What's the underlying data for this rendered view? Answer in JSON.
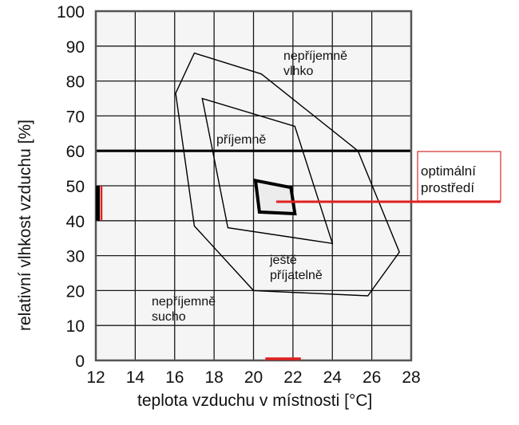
{
  "chart_data": {
    "type": "area",
    "title": "",
    "xlabel": "teplota vzduchu v místnosti [°C]",
    "ylabel": "relativní vlhkost vzduchu [%]",
    "xlim": [
      12,
      28
    ],
    "ylim": [
      0,
      100
    ],
    "x_ticks": [
      12,
      14,
      16,
      18,
      20,
      22,
      24,
      26,
      28
    ],
    "y_ticks": [
      0,
      10,
      20,
      30,
      40,
      50,
      60,
      70,
      80,
      90,
      100
    ],
    "grid": true,
    "reference_lines": [
      {
        "orientation": "horizontal",
        "value": 60,
        "style": "bold"
      }
    ],
    "series": [
      {
        "name": "ještě příjatelně",
        "kind": "polygon-outer",
        "points": [
          [
            17.0,
            88
          ],
          [
            20.4,
            82
          ],
          [
            25.3,
            60
          ],
          [
            27.4,
            31
          ],
          [
            25.8,
            18.5
          ],
          [
            20.0,
            20
          ],
          [
            17.0,
            38.5
          ],
          [
            16.05,
            76.5
          ]
        ]
      },
      {
        "name": "příjemně",
        "kind": "polygon-inner",
        "points": [
          [
            17.4,
            75
          ],
          [
            22.1,
            67
          ],
          [
            24.0,
            33.5
          ],
          [
            18.7,
            38
          ]
        ]
      },
      {
        "name": "optimální prostředí",
        "kind": "polygon-bold",
        "points": [
          [
            20.1,
            51.5
          ],
          [
            21.9,
            49.5
          ],
          [
            22.1,
            42
          ],
          [
            20.3,
            42.5
          ]
        ]
      }
    ],
    "annotations": [
      {
        "text": "nepříjemně vlhko",
        "x": 22.0,
        "y": 88
      },
      {
        "text": "příjemně",
        "x": 18.0,
        "y": 64
      },
      {
        "text": "ještě příjatelně",
        "x": 20.6,
        "y": 28
      },
      {
        "text": "nepříjemně sucho",
        "x": 14.8,
        "y": 14
      },
      {
        "text": "optimální prostředí",
        "boxed": true,
        "color": "#d42a2a"
      }
    ],
    "highlight_ranges": [
      {
        "axis": "x",
        "from": 20.6,
        "to": 22.4,
        "color": "#e02020"
      },
      {
        "axis": "y",
        "from": 40,
        "to": 50,
        "color": "#e02020"
      }
    ]
  },
  "labels": {
    "zone_humid_1": "nepříjemně",
    "zone_humid_2": "vlhko",
    "zone_pleasant": "příjemně",
    "zone_acceptable_1": "ještě",
    "zone_acceptable_2": "příjatelně",
    "zone_dry_1": "nepříjemně",
    "zone_dry_2": "sucho",
    "optimal_1": "optimální",
    "optimal_2": "prostředí"
  },
  "colors": {
    "grid": "#1a1a1a",
    "accent_red": "#e02020",
    "box_red": "#d42a2a",
    "plot_bg": "#f4f4f4"
  }
}
